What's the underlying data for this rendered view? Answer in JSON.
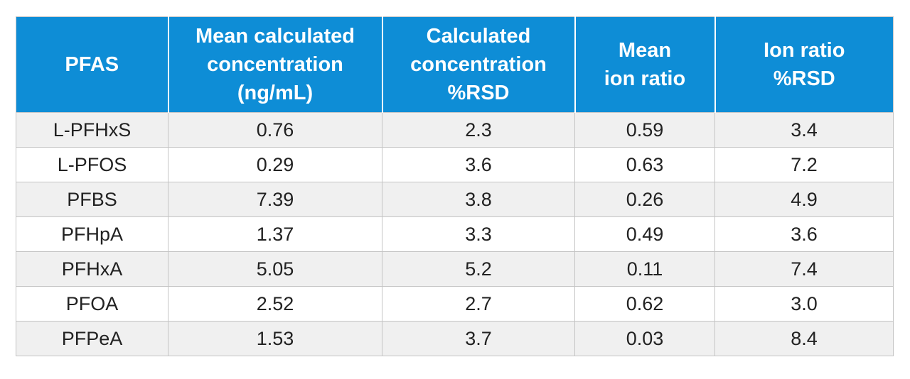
{
  "table": {
    "headers": [
      [
        "PFAS"
      ],
      [
        "Mean calculated",
        "concentration",
        "(ng/mL)"
      ],
      [
        "Calculated",
        "concentration",
        "%RSD"
      ],
      [
        "Mean",
        "ion ratio"
      ],
      [
        "Ion ratio",
        "%RSD"
      ]
    ],
    "rows": [
      [
        "L-PFHxS",
        "0.76",
        "2.3",
        "0.59",
        "3.4"
      ],
      [
        "L-PFOS",
        "0.29",
        "3.6",
        "0.63",
        "7.2"
      ],
      [
        "PFBS",
        "7.39",
        "3.8",
        "0.26",
        "4.9"
      ],
      [
        "PFHpA",
        "1.37",
        "3.3",
        "0.49",
        "3.6"
      ],
      [
        "PFHxA",
        "5.05",
        "5.2",
        "0.11",
        "7.4"
      ],
      [
        "PFOA",
        "2.52",
        "2.7",
        "0.62",
        "3.0"
      ],
      [
        "PFPeA",
        "1.53",
        "3.7",
        "0.03",
        "8.4"
      ]
    ]
  },
  "colors": {
    "header_bg": "#0e8dd6",
    "header_text": "#ffffff",
    "row_alt_bg": "#f0f0f0"
  }
}
